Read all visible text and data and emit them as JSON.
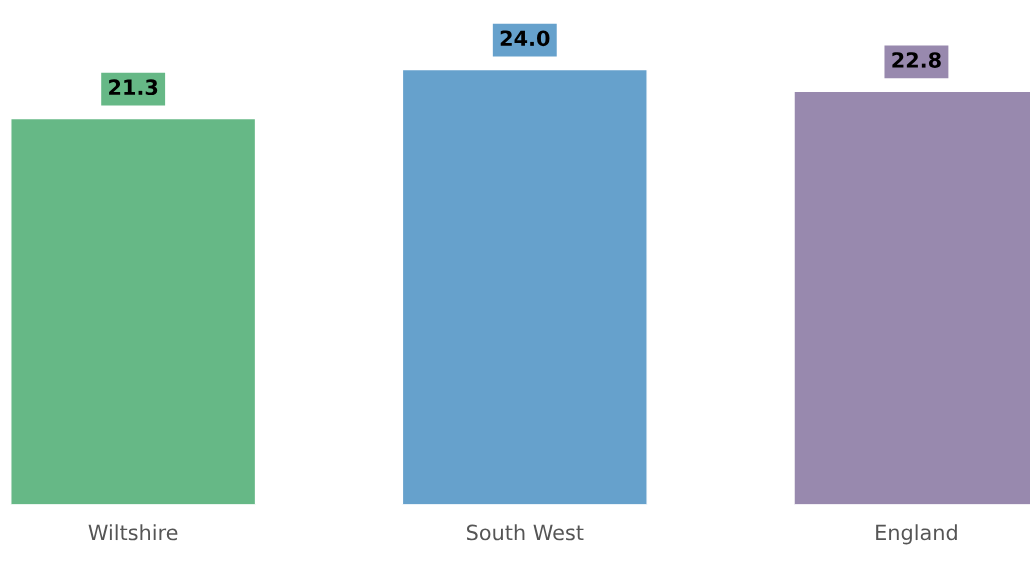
{
  "chart_data": {
    "type": "bar",
    "categories": [
      "Wiltshire",
      "South West",
      "England"
    ],
    "values": [
      21.3,
      24.0,
      22.8
    ],
    "colors": [
      "#66b886",
      "#66a1cc",
      "#9889ae"
    ],
    "value_labels": [
      "21.3",
      "24.0",
      "22.8"
    ],
    "grid": false,
    "legend": false
  }
}
